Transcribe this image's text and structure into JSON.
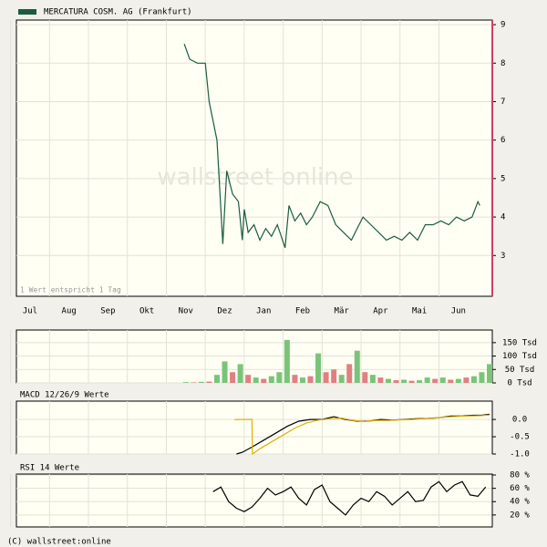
{
  "chart_data": [
    {
      "type": "line",
      "series": [
        {
          "name": "MERCATURA COSM. AG (Frankfurt)",
          "color": "#1a5c40",
          "x": [
            4.46,
            4.6,
            4.8,
            5.0,
            5.1,
            5.3,
            5.45,
            5.55,
            5.7,
            5.85,
            5.95,
            6.0,
            6.1,
            6.25,
            6.4,
            6.55,
            6.7,
            6.85,
            7.05,
            7.15,
            7.3,
            7.45,
            7.6,
            7.75,
            7.95,
            8.15,
            8.35,
            8.55,
            8.75,
            8.95,
            9.05,
            9.25,
            9.45,
            9.65,
            9.85,
            10.05,
            10.25,
            10.45,
            10.65,
            10.85,
            11.05,
            11.25,
            11.45,
            11.65,
            11.85,
            12.0,
            12.05
          ],
          "values": [
            8.5,
            8.1,
            8.0,
            8.0,
            7.0,
            6.0,
            3.3,
            5.2,
            4.6,
            4.4,
            3.4,
            4.2,
            3.6,
            3.8,
            3.4,
            3.7,
            3.5,
            3.8,
            3.2,
            4.3,
            3.9,
            4.1,
            3.8,
            4.0,
            4.4,
            4.3,
            3.8,
            3.6,
            3.4,
            3.8,
            4.0,
            3.8,
            3.6,
            3.4,
            3.5,
            3.4,
            3.6,
            3.4,
            3.8,
            3.8,
            3.9,
            3.8,
            4.0,
            3.9,
            4.0,
            4.4,
            4.3
          ]
        }
      ],
      "note": "1 Wert entspricht 1 Tag",
      "watermark": "wallstreet online",
      "xlim": [
        0.15,
        12.37
      ],
      "ylim": [
        1.94,
        9.12
      ],
      "yticks": [
        3,
        4,
        5,
        6,
        7,
        8,
        9
      ],
      "xticks": [
        {
          "value": 0,
          "label": "Jul"
        },
        {
          "value": 1,
          "label": "Aug"
        },
        {
          "value": 2,
          "label": "Sep"
        },
        {
          "value": 3,
          "label": "Okt"
        },
        {
          "value": 4,
          "label": "Nov"
        },
        {
          "value": 5,
          "label": "Dez"
        },
        {
          "value": 6,
          "label": "Jan"
        },
        {
          "value": 7,
          "label": "Feb"
        },
        {
          "value": 8,
          "label": "Mär"
        },
        {
          "value": 9,
          "label": "Apr"
        },
        {
          "value": 10,
          "label": "Mai"
        },
        {
          "value": 11,
          "label": "Jun"
        }
      ],
      "grid": true
    },
    {
      "type": "bar",
      "xlim": [
        0.15,
        12.37
      ],
      "ylim": [
        0,
        197000
      ],
      "yticks": [
        {
          "value": 0,
          "label": "0 Tsd"
        },
        {
          "value": 50000,
          "label": "50 Tsd"
        },
        {
          "value": 100000,
          "label": "100 Tsd"
        },
        {
          "value": 150000,
          "label": "150 Tsd"
        }
      ],
      "x": [
        4.5,
        4.7,
        4.9,
        5.1,
        5.3,
        5.5,
        5.7,
        5.9,
        6.1,
        6.3,
        6.5,
        6.7,
        6.9,
        7.1,
        7.3,
        7.5,
        7.7,
        7.9,
        8.1,
        8.3,
        8.5,
        8.7,
        8.9,
        9.1,
        9.3,
        9.5,
        9.7,
        9.9,
        10.1,
        10.3,
        10.5,
        10.7,
        10.9,
        11.1,
        11.3,
        11.5,
        11.7,
        11.9,
        12.1,
        12.3
      ],
      "values": [
        3000,
        2000,
        4000,
        5000,
        30000,
        80000,
        40000,
        70000,
        30000,
        20000,
        15000,
        25000,
        40000,
        160000,
        30000,
        20000,
        25000,
        110000,
        40000,
        50000,
        30000,
        70000,
        120000,
        40000,
        30000,
        20000,
        15000,
        10000,
        12000,
        8000,
        10000,
        20000,
        15000,
        20000,
        12000,
        15000,
        20000,
        25000,
        40000,
        70000
      ],
      "colors": [
        "#7ac47a",
        "#e08080",
        "#7ac47a",
        "#e08080",
        "#7ac47a",
        "#7ac47a",
        "#e08080",
        "#7ac47a",
        "#e08080",
        "#7ac47a",
        "#e08080",
        "#7ac47a",
        "#7ac47a",
        "#7ac47a",
        "#e08080",
        "#7ac47a",
        "#e08080",
        "#7ac47a",
        "#e08080",
        "#e08080",
        "#7ac47a",
        "#e08080",
        "#7ac47a",
        "#e08080",
        "#7ac47a",
        "#e08080",
        "#7ac47a",
        "#e08080",
        "#7ac47a",
        "#e08080",
        "#7ac47a",
        "#7ac47a",
        "#e08080",
        "#7ac47a",
        "#e08080",
        "#7ac47a",
        "#e08080",
        "#7ac47a",
        "#7ac47a",
        "#7ac47a"
      ]
    },
    {
      "type": "line",
      "title": "MACD 12/26/9 Werte",
      "xlim": [
        0.15,
        12.37
      ],
      "ylim": [
        -1.0,
        0.53
      ],
      "yticks": [
        {
          "value": -1,
          "label": "-1.0"
        },
        {
          "value": -0.5,
          "label": "-0.5"
        },
        {
          "value": 0,
          "label": "0.0"
        }
      ],
      "series": [
        {
          "color": "#000000",
          "x": [
            5.8,
            5.95,
            6.2,
            6.5,
            6.8,
            7.1,
            7.4,
            7.7,
            8.0,
            8.3,
            8.6,
            8.9,
            9.2,
            9.5,
            9.8,
            10.1,
            10.4,
            10.7,
            11.0,
            11.3,
            11.6,
            11.9,
            12.1,
            12.3
          ],
          "values": [
            -1.0,
            -0.95,
            -0.8,
            -0.6,
            -0.4,
            -0.2,
            -0.05,
            0.0,
            0.0,
            0.08,
            0.0,
            -0.05,
            -0.05,
            0.0,
            -0.02,
            0.0,
            0.02,
            0.03,
            0.05,
            0.1,
            0.1,
            0.12,
            0.12,
            0.15
          ]
        },
        {
          "color": "#e0b000",
          "x": [
            5.75,
            6.2,
            6.21,
            6.4,
            6.7,
            7.0,
            7.3,
            7.6,
            7.9,
            8.2,
            8.5,
            8.8,
            9.1,
            9.4,
            9.7,
            10.0,
            10.3,
            10.6,
            10.9,
            11.2,
            11.5,
            11.8,
            12.1,
            12.3
          ],
          "values": [
            0.0,
            0.0,
            -1.0,
            -0.85,
            -0.65,
            -0.45,
            -0.25,
            -0.1,
            -0.02,
            0.02,
            0.04,
            -0.03,
            -0.06,
            -0.03,
            -0.03,
            -0.01,
            0.0,
            0.02,
            0.04,
            0.07,
            0.09,
            0.1,
            0.11,
            0.13
          ]
        }
      ]
    },
    {
      "type": "line",
      "title": "RSI 14 Werte",
      "xlim": [
        0.15,
        12.37
      ],
      "ylim": [
        2,
        81.4
      ],
      "yticks": [
        {
          "value": 20,
          "label": "20 %"
        },
        {
          "value": 40,
          "label": "40 %"
        },
        {
          "value": 60,
          "label": "60 %"
        },
        {
          "value": 80,
          "label": "80 %"
        }
      ],
      "series": [
        {
          "color": "#000000",
          "x": [
            5.2,
            5.4,
            5.6,
            5.8,
            6.0,
            6.2,
            6.4,
            6.6,
            6.8,
            7.0,
            7.2,
            7.4,
            7.6,
            7.8,
            8.0,
            8.2,
            8.4,
            8.6,
            8.8,
            9.0,
            9.2,
            9.4,
            9.6,
            9.8,
            10.0,
            10.2,
            10.4,
            10.6,
            10.8,
            11.0,
            11.2,
            11.4,
            11.6,
            11.8,
            12.0,
            12.2
          ],
          "values": [
            55,
            62,
            40,
            30,
            25,
            32,
            45,
            60,
            50,
            55,
            62,
            45,
            35,
            58,
            65,
            40,
            30,
            20,
            35,
            45,
            40,
            55,
            48,
            35,
            45,
            55,
            40,
            42,
            62,
            70,
            55,
            65,
            70,
            50,
            48,
            62
          ]
        }
      ]
    }
  ],
  "footer": "(C) wallstreet:online"
}
